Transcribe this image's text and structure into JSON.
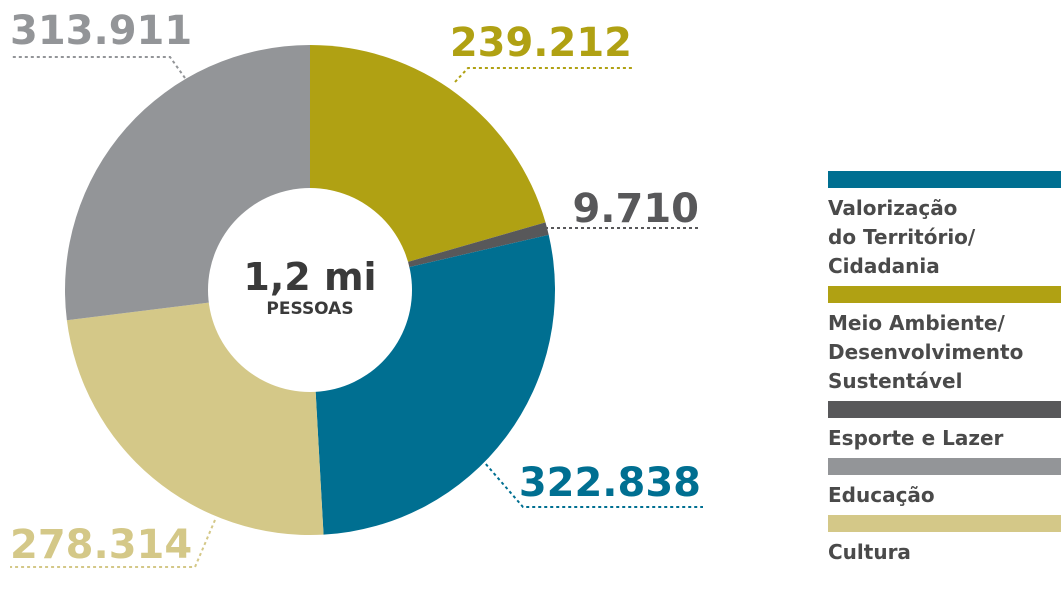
{
  "chart_data": {
    "type": "pie",
    "center": {
      "value": "1,2 mi",
      "label": "PESSOAS"
    },
    "slices": [
      {
        "name": "Meio Ambiente/ Desenvolvimento Sustentável",
        "value": 239212,
        "label": "239.212",
        "color": "#b0a113"
      },
      {
        "name": "Esporte e Lazer",
        "value": 9710,
        "label": "9.710",
        "color": "#58585a"
      },
      {
        "name": "Valorização do Território/ Cidadania",
        "value": 322838,
        "label": "322.838",
        "color": "#006f91"
      },
      {
        "name": "Cultura",
        "value": 278314,
        "label": "278.314",
        "color": "#d4c888"
      },
      {
        "name": "Educação",
        "value": 313911,
        "label": "313.911",
        "color": "#939598"
      }
    ]
  },
  "legend": [
    {
      "lines": [
        "Valorização",
        "do Território/",
        "Cidadania"
      ],
      "color": "#006f91"
    },
    {
      "lines": [
        "Meio Ambiente/",
        "Desenvolvimento",
        "Sustentável"
      ],
      "color": "#b0a113"
    },
    {
      "lines": [
        "Esporte e Lazer"
      ],
      "color": "#58585a"
    },
    {
      "lines": [
        "Educação"
      ],
      "color": "#939598"
    },
    {
      "lines": [
        "Cultura"
      ],
      "color": "#d4c888"
    }
  ]
}
